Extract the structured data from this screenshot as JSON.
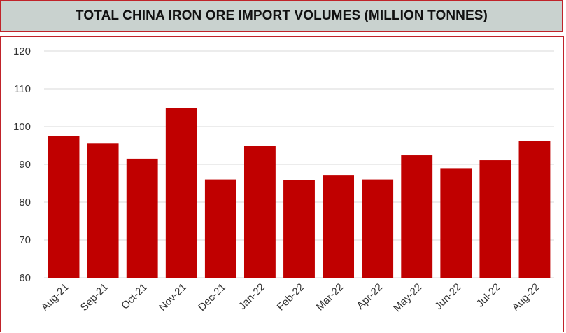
{
  "chart_data": {
    "type": "bar",
    "title": "TOTAL CHINA IRON ORE IMPORT VOLUMES (MILLION TONNES)",
    "xlabel": "",
    "ylabel": "",
    "categories": [
      "Aug-21",
      "Sep-21",
      "Oct-21",
      "Nov-21",
      "Dec-21",
      "Jan-22",
      "Feb-22",
      "Mar-22",
      "Apr-22",
      "May-22",
      "Jun-22",
      "Jul-22",
      "Aug-22"
    ],
    "values": [
      97.5,
      95.5,
      91.5,
      105,
      86,
      95,
      85.8,
      87.2,
      86,
      92.4,
      89,
      91.1,
      96.2
    ],
    "ylim": [
      60,
      120
    ],
    "yticks": [
      60,
      70,
      80,
      90,
      100,
      110,
      120
    ],
    "grid": true,
    "bar_color": "#c00000",
    "grid_color": "#d9d9d9"
  },
  "colors": {
    "title_bg": "#c9d2cf",
    "frame_border": "#c0232a"
  }
}
